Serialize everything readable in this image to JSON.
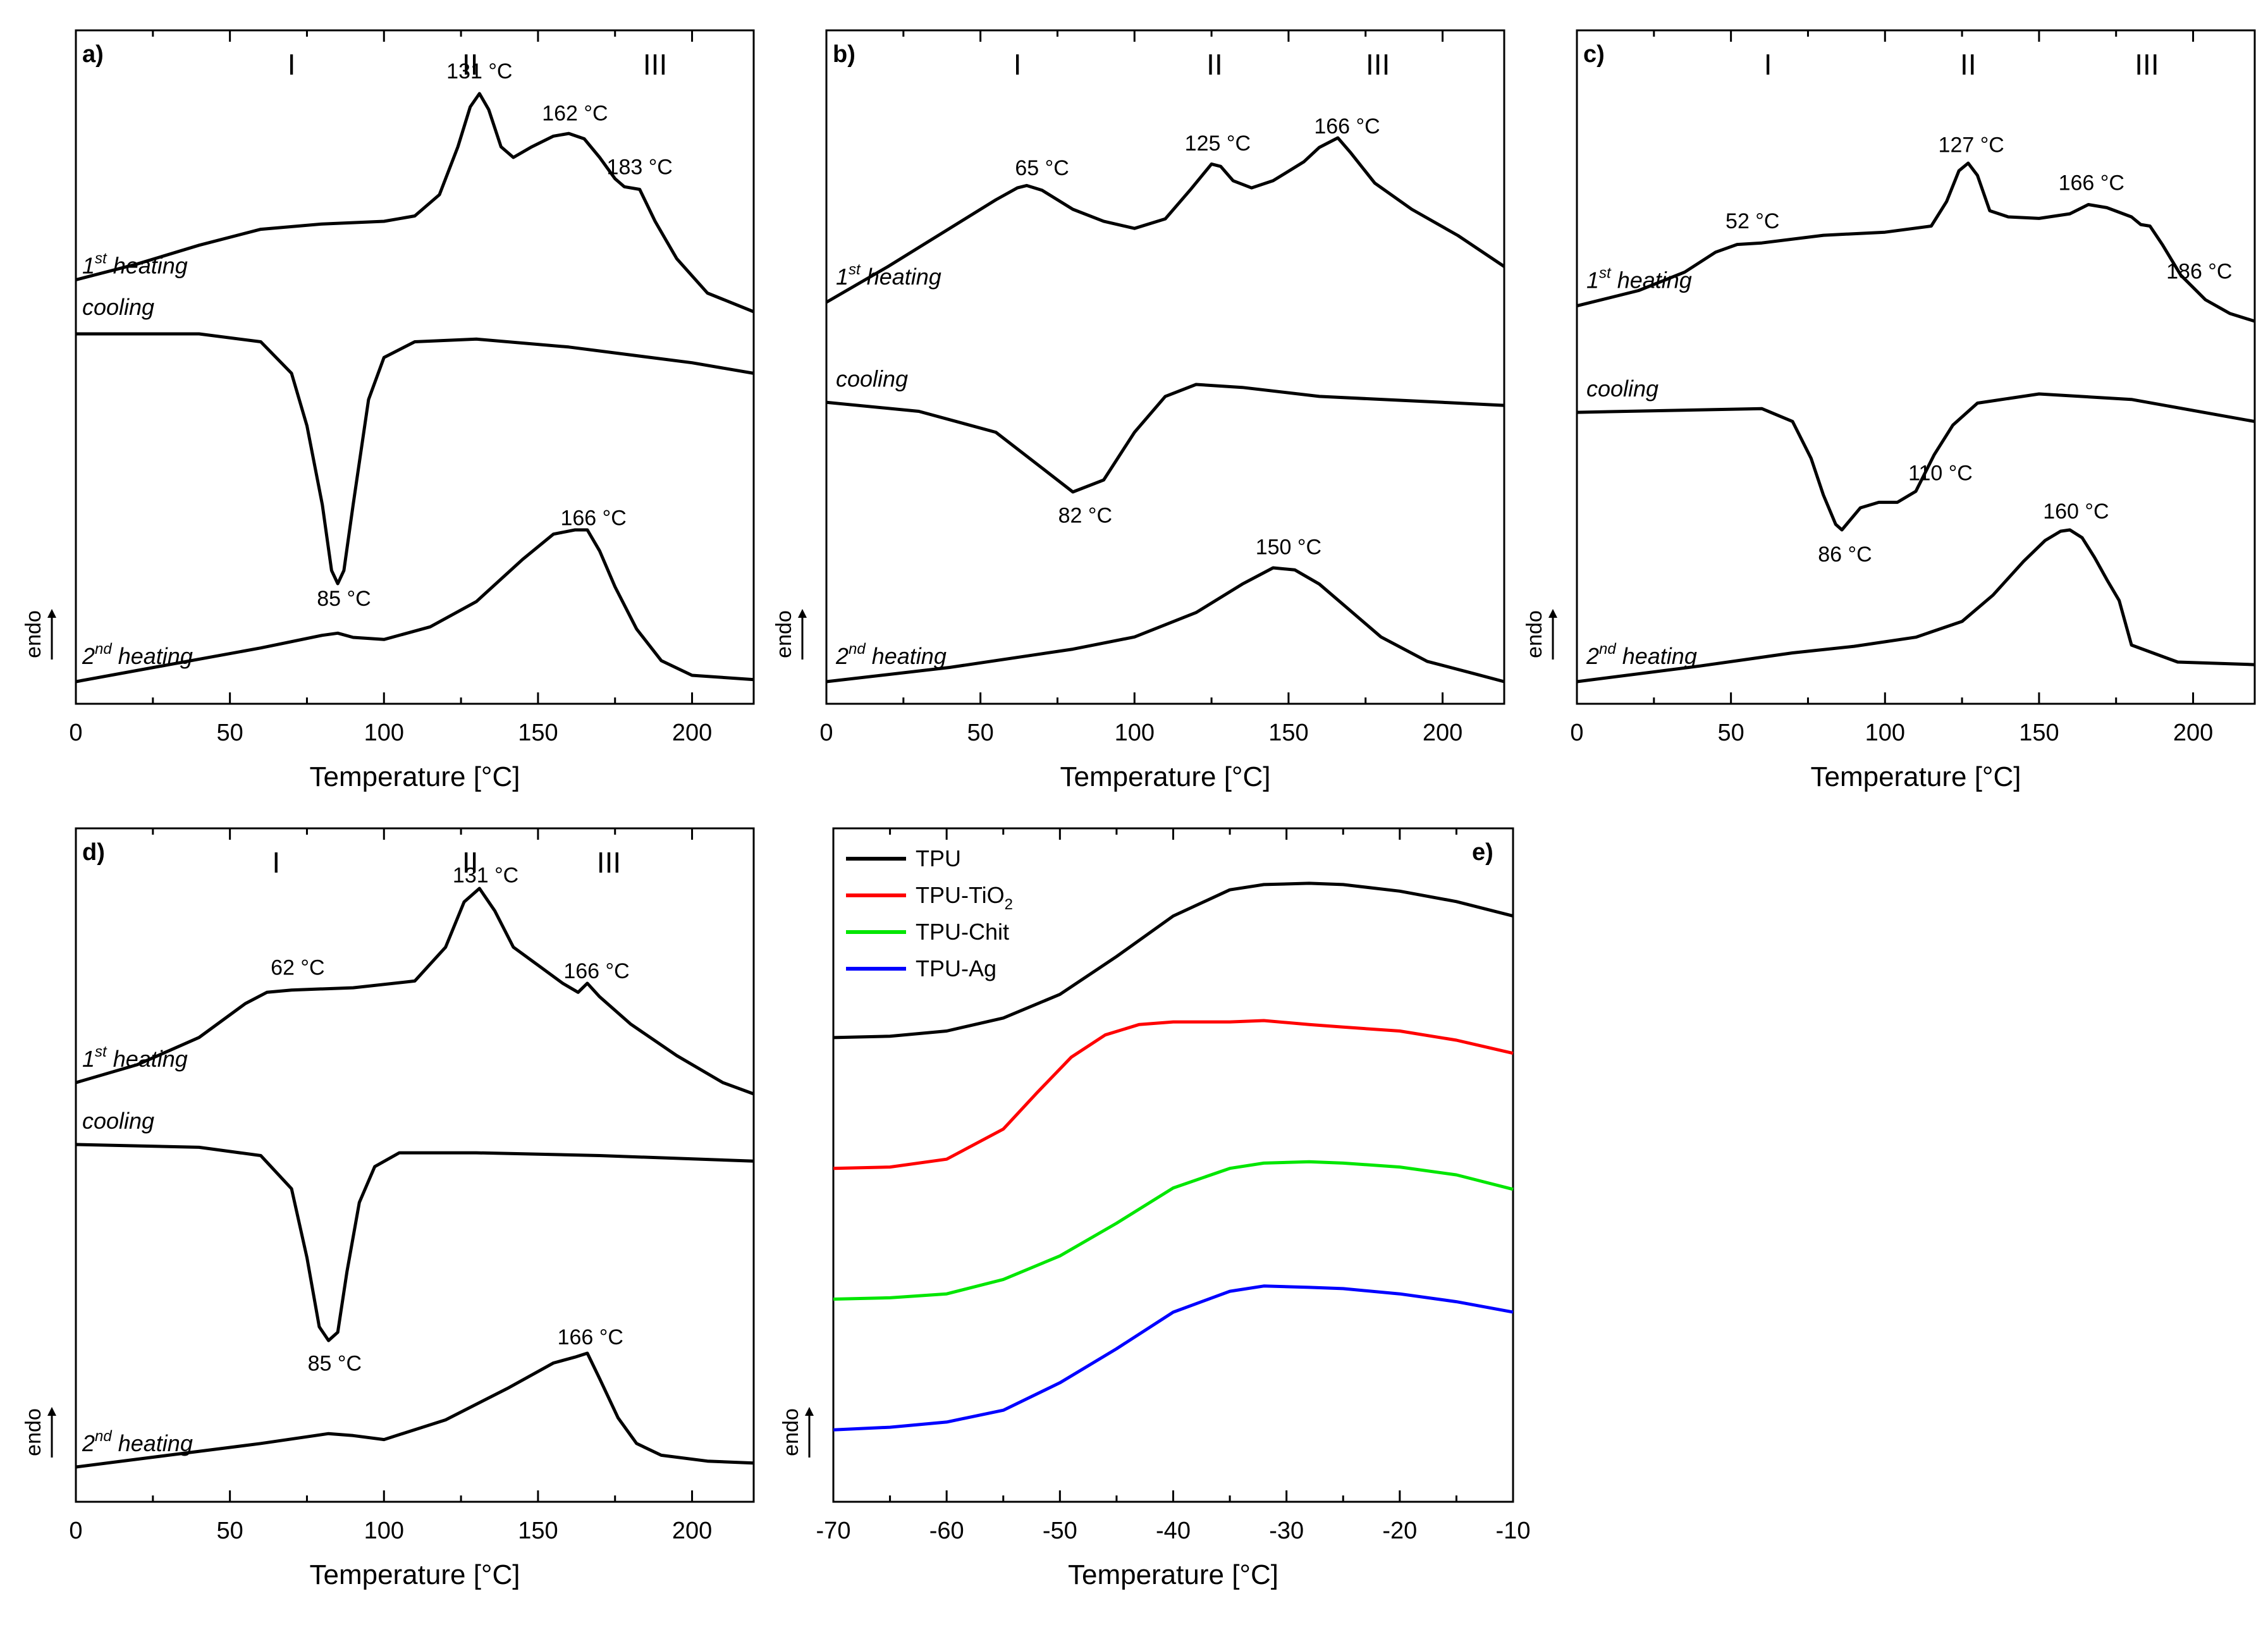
{
  "chart_data": [
    {
      "panel": "a)",
      "type": "line",
      "xlabel": "Temperature [°C]",
      "xlim": [
        0,
        220
      ],
      "xticks": [
        "0",
        "50",
        "100",
        "150",
        "200"
      ],
      "endo_label": "endo",
      "regions": [
        "I",
        "II",
        "III"
      ],
      "region_x": [
        70,
        128,
        188
      ],
      "series": [
        {
          "name": "1st heating",
          "base": "1",
          "sup": "st",
          "rest": " heating",
          "x": [
            0,
            20,
            40,
            60,
            80,
            100,
            110,
            118,
            124,
            128,
            131,
            134,
            138,
            142,
            148,
            155,
            160,
            165,
            170,
            175,
            178,
            183,
            188,
            195,
            205,
            220
          ],
          "y": [
            0.2,
            0.26,
            0.33,
            0.39,
            0.41,
            0.42,
            0.44,
            0.52,
            0.7,
            0.85,
            0.9,
            0.84,
            0.7,
            0.66,
            0.7,
            0.74,
            0.75,
            0.73,
            0.66,
            0.58,
            0.55,
            0.54,
            0.42,
            0.28,
            0.15,
            0.08
          ]
        },
        {
          "name": "cooling",
          "x": [
            0,
            40,
            60,
            70,
            75,
            80,
            83,
            85,
            87,
            90,
            95,
            100,
            110,
            130,
            160,
            200,
            220
          ],
          "y": [
            0.55,
            0.55,
            0.52,
            0.4,
            0.2,
            -0.1,
            -0.35,
            -0.4,
            -0.35,
            -0.1,
            0.3,
            0.46,
            0.52,
            0.53,
            0.5,
            0.44,
            0.4
          ]
        },
        {
          "name": "2nd heating",
          "base": "2",
          "sup": "nd",
          "rest": " heating",
          "x": [
            0,
            30,
            60,
            80,
            85,
            90,
            100,
            115,
            130,
            145,
            155,
            162,
            166,
            170,
            175,
            182,
            190,
            200,
            220
          ],
          "y": [
            0.0,
            0.08,
            0.16,
            0.22,
            0.23,
            0.21,
            0.2,
            0.26,
            0.38,
            0.58,
            0.7,
            0.72,
            0.72,
            0.62,
            0.45,
            0.25,
            0.1,
            0.03,
            0.01
          ]
        }
      ],
      "annotations": [
        {
          "text": "131 °C",
          "x": 131,
          "series": 0,
          "dy": 1
        },
        {
          "text": "162 °C",
          "x": 162,
          "series": 0,
          "dy": 1
        },
        {
          "text": "183 °C",
          "x": 183,
          "series": 0,
          "dy": 1
        },
        {
          "text": "85 °C",
          "x": 87,
          "series": 1,
          "dy": -1
        },
        {
          "text": "166 °C",
          "x": 168,
          "series": 2,
          "dy": 1
        }
      ]
    },
    {
      "panel": "b)",
      "type": "line",
      "xlabel": "Temperature [°C]",
      "xlim": [
        0,
        220
      ],
      "xticks": [
        "0",
        "50",
        "100",
        "150",
        "200"
      ],
      "endo_label": "endo",
      "regions": [
        "I",
        "II",
        "III"
      ],
      "region_x": [
        62,
        126,
        179
      ],
      "series": [
        {
          "name": "1st heating",
          "base": "1",
          "sup": "st",
          "rest": " heating",
          "x": [
            0,
            20,
            40,
            55,
            62,
            65,
            70,
            80,
            90,
            100,
            110,
            118,
            125,
            128,
            132,
            138,
            145,
            155,
            160,
            166,
            170,
            178,
            190,
            205,
            220
          ],
          "y": [
            0.05,
            0.2,
            0.36,
            0.48,
            0.53,
            0.54,
            0.52,
            0.44,
            0.39,
            0.36,
            0.4,
            0.52,
            0.63,
            0.62,
            0.56,
            0.53,
            0.56,
            0.64,
            0.7,
            0.74,
            0.68,
            0.55,
            0.44,
            0.33,
            0.2
          ]
        },
        {
          "name": "cooling",
          "x": [
            0,
            30,
            55,
            70,
            80,
            90,
            100,
            110,
            120,
            135,
            160,
            200,
            220
          ],
          "y": [
            0.5,
            0.47,
            0.4,
            0.28,
            0.2,
            0.24,
            0.4,
            0.52,
            0.56,
            0.55,
            0.52,
            0.5,
            0.49
          ]
        },
        {
          "name": "2nd heating",
          "base": "2",
          "sup": "nd",
          "rest": " heating",
          "x": [
            0,
            40,
            80,
            100,
            120,
            135,
            145,
            152,
            160,
            170,
            180,
            195,
            210,
            220
          ],
          "y": [
            0.0,
            0.07,
            0.16,
            0.22,
            0.34,
            0.48,
            0.56,
            0.55,
            0.48,
            0.35,
            0.22,
            0.1,
            0.04,
            0.0
          ]
        }
      ],
      "annotations": [
        {
          "text": "65 °C",
          "x": 70,
          "series": 0,
          "dy": 1
        },
        {
          "text": "125 °C",
          "x": 127,
          "series": 0,
          "dy": 1
        },
        {
          "text": "166 °C",
          "x": 169,
          "series": 0,
          "dy": 1
        },
        {
          "text": "82 °C",
          "x": 84,
          "series": 1,
          "dy": -1
        },
        {
          "text": "150 °C",
          "x": 150,
          "series": 2,
          "dy": 1
        }
      ]
    },
    {
      "panel": "c)",
      "type": "line",
      "xlabel": "Temperature [°C]",
      "xlim": [
        0,
        220
      ],
      "xticks": [
        "0",
        "50",
        "100",
        "150",
        "200"
      ],
      "endo_label": "endo",
      "regions": [
        "I",
        "II",
        "III"
      ],
      "region_x": [
        62,
        127,
        185
      ],
      "series": [
        {
          "name": "1st heating",
          "base": "1",
          "sup": "st",
          "rest": " heating",
          "x": [
            0,
            20,
            35,
            45,
            52,
            60,
            80,
            100,
            115,
            120,
            124,
            127,
            130,
            134,
            140,
            150,
            160,
            166,
            172,
            180,
            183,
            186,
            190,
            196,
            204,
            212,
            220
          ],
          "y": [
            0.1,
            0.2,
            0.32,
            0.45,
            0.5,
            0.51,
            0.56,
            0.58,
            0.62,
            0.78,
            0.98,
            1.03,
            0.95,
            0.72,
            0.68,
            0.67,
            0.7,
            0.76,
            0.74,
            0.68,
            0.63,
            0.62,
            0.5,
            0.3,
            0.14,
            0.05,
            0.0
          ]
        },
        {
          "name": "cooling",
          "x": [
            0,
            60,
            70,
            76,
            80,
            84,
            86,
            88,
            92,
            98,
            104,
            110,
            116,
            122,
            130,
            150,
            180,
            220
          ],
          "y": [
            0.55,
            0.57,
            0.5,
            0.3,
            0.1,
            -0.06,
            -0.09,
            -0.05,
            0.03,
            0.06,
            0.06,
            0.12,
            0.32,
            0.48,
            0.6,
            0.65,
            0.62,
            0.5
          ]
        },
        {
          "name": "2nd heating",
          "base": "2",
          "sup": "nd",
          "rest": " heating",
          "x": [
            0,
            40,
            70,
            90,
            110,
            125,
            135,
            145,
            152,
            157,
            160,
            164,
            168,
            172,
            176,
            180,
            195,
            220
          ],
          "y": [
            0.0,
            0.12,
            0.22,
            0.27,
            0.34,
            0.46,
            0.66,
            0.92,
            1.08,
            1.15,
            1.16,
            1.1,
            0.95,
            0.78,
            0.62,
            0.28,
            0.15,
            0.13
          ]
        }
      ],
      "annotations": [
        {
          "text": "52 °C",
          "x": 57,
          "series": 0,
          "dy": 1
        },
        {
          "text": "127 °C",
          "x": 128,
          "series": 0,
          "dy": 1
        },
        {
          "text": "166 °C",
          "x": 167,
          "series": 0,
          "dy": 1
        },
        {
          "text": "186 °C",
          "x": 202,
          "series": 0,
          "dy": 1
        },
        {
          "text": "86 °C",
          "x": 87,
          "series": 1,
          "dy": -1
        },
        {
          "text": "110 °C",
          "x": 118,
          "series": 1,
          "dy": -1
        },
        {
          "text": "160 °C",
          "x": 162,
          "series": 2,
          "dy": 1
        }
      ]
    },
    {
      "panel": "d)",
      "type": "line",
      "xlabel": "Temperature [°C]",
      "xlim": [
        0,
        220
      ],
      "xticks": [
        "0",
        "50",
        "100",
        "150",
        "200"
      ],
      "endo_label": "endo",
      "regions": [
        "I",
        "II",
        "III"
      ],
      "region_x": [
        65,
        128,
        173
      ],
      "series": [
        {
          "name": "1st heating",
          "base": "1",
          "sup": "st",
          "rest": " heating",
          "x": [
            0,
            20,
            40,
            55,
            62,
            70,
            90,
            110,
            120,
            126,
            131,
            136,
            142,
            150,
            158,
            163,
            166,
            170,
            180,
            195,
            210,
            220
          ],
          "y": [
            0.1,
            0.18,
            0.3,
            0.45,
            0.5,
            0.51,
            0.52,
            0.55,
            0.7,
            0.9,
            0.96,
            0.86,
            0.7,
            0.62,
            0.54,
            0.5,
            0.54,
            0.48,
            0.36,
            0.22,
            0.1,
            0.05
          ]
        },
        {
          "name": "cooling",
          "x": [
            0,
            40,
            60,
            70,
            75,
            79,
            82,
            85,
            88,
            92,
            97,
            105,
            130,
            170,
            220
          ],
          "y": [
            0.66,
            0.65,
            0.62,
            0.5,
            0.25,
            0.0,
            -0.05,
            -0.02,
            0.2,
            0.45,
            0.58,
            0.63,
            0.63,
            0.62,
            0.6
          ]
        },
        {
          "name": "2nd heating",
          "base": "2",
          "sup": "nd",
          "rest": " heating",
          "x": [
            0,
            30,
            60,
            82,
            90,
            100,
            120,
            140,
            155,
            162,
            166,
            170,
            176,
            182,
            190,
            205,
            220
          ],
          "y": [
            0.0,
            0.06,
            0.12,
            0.17,
            0.16,
            0.14,
            0.24,
            0.4,
            0.53,
            0.56,
            0.58,
            0.45,
            0.25,
            0.12,
            0.06,
            0.03,
            0.02
          ]
        }
      ],
      "annotations": [
        {
          "text": "62 °C",
          "x": 72,
          "series": 0,
          "dy": 1
        },
        {
          "text": "131 °C",
          "x": 133,
          "series": 0,
          "dy": 1
        },
        {
          "text": "166 °C",
          "x": 169,
          "series": 0,
          "dy": 1
        },
        {
          "text": "85 °C",
          "x": 84,
          "series": 1,
          "dy": -1
        },
        {
          "text": "166 °C",
          "x": 167,
          "series": 2,
          "dy": 1
        }
      ]
    },
    {
      "panel": "e)",
      "type": "line",
      "xlabel": "Temperature [°C]",
      "xlim": [
        -70,
        -10
      ],
      "xticks": [
        "-70",
        "-60",
        "-50",
        "-40",
        "-30",
        "-20",
        "-10"
      ],
      "endo_label": "endo",
      "legend": [
        {
          "label": "TPU",
          "color": "#000000"
        },
        {
          "label": "TPU-TiO",
          "sub": "2",
          "color": "#ff0000"
        },
        {
          "label": "TPU-Chit",
          "color": "#00e600"
        },
        {
          "label": "TPU-Ag",
          "color": "#0000ff"
        }
      ],
      "series": [
        {
          "name": "TPU",
          "color": "#000000",
          "x": [
            -70,
            -65,
            -60,
            -55,
            -50,
            -45,
            -40,
            -35,
            -32,
            -28,
            -25,
            -20,
            -15,
            -10
          ],
          "y": [
            3.0,
            3.01,
            3.05,
            3.15,
            3.33,
            3.62,
            3.93,
            4.13,
            4.17,
            4.18,
            4.17,
            4.12,
            4.04,
            3.93
          ]
        },
        {
          "name": "TPU-TiO2",
          "color": "#ff0000",
          "x": [
            -70,
            -65,
            -60,
            -55,
            -52,
            -49,
            -46,
            -43,
            -40,
            -35,
            -32,
            -28,
            -25,
            -20,
            -15,
            -10
          ],
          "y": [
            2.0,
            2.01,
            2.07,
            2.3,
            2.58,
            2.85,
            3.02,
            3.1,
            3.12,
            3.12,
            3.13,
            3.1,
            3.08,
            3.05,
            2.98,
            2.88
          ]
        },
        {
          "name": "TPU-Chit",
          "color": "#00e600",
          "x": [
            -70,
            -65,
            -60,
            -55,
            -50,
            -45,
            -40,
            -35,
            -32,
            -28,
            -25,
            -20,
            -15,
            -10
          ],
          "y": [
            1.0,
            1.01,
            1.04,
            1.15,
            1.33,
            1.58,
            1.85,
            2.0,
            2.04,
            2.05,
            2.04,
            2.01,
            1.95,
            1.84
          ]
        },
        {
          "name": "TPU-Ag",
          "color": "#0000ff",
          "x": [
            -70,
            -65,
            -60,
            -55,
            -50,
            -45,
            -40,
            -35,
            -32,
            -28,
            -25,
            -20,
            -15,
            -10
          ],
          "y": [
            0.0,
            0.02,
            0.06,
            0.15,
            0.36,
            0.62,
            0.9,
            1.06,
            1.1,
            1.09,
            1.08,
            1.04,
            0.98,
            0.9
          ]
        }
      ]
    }
  ]
}
